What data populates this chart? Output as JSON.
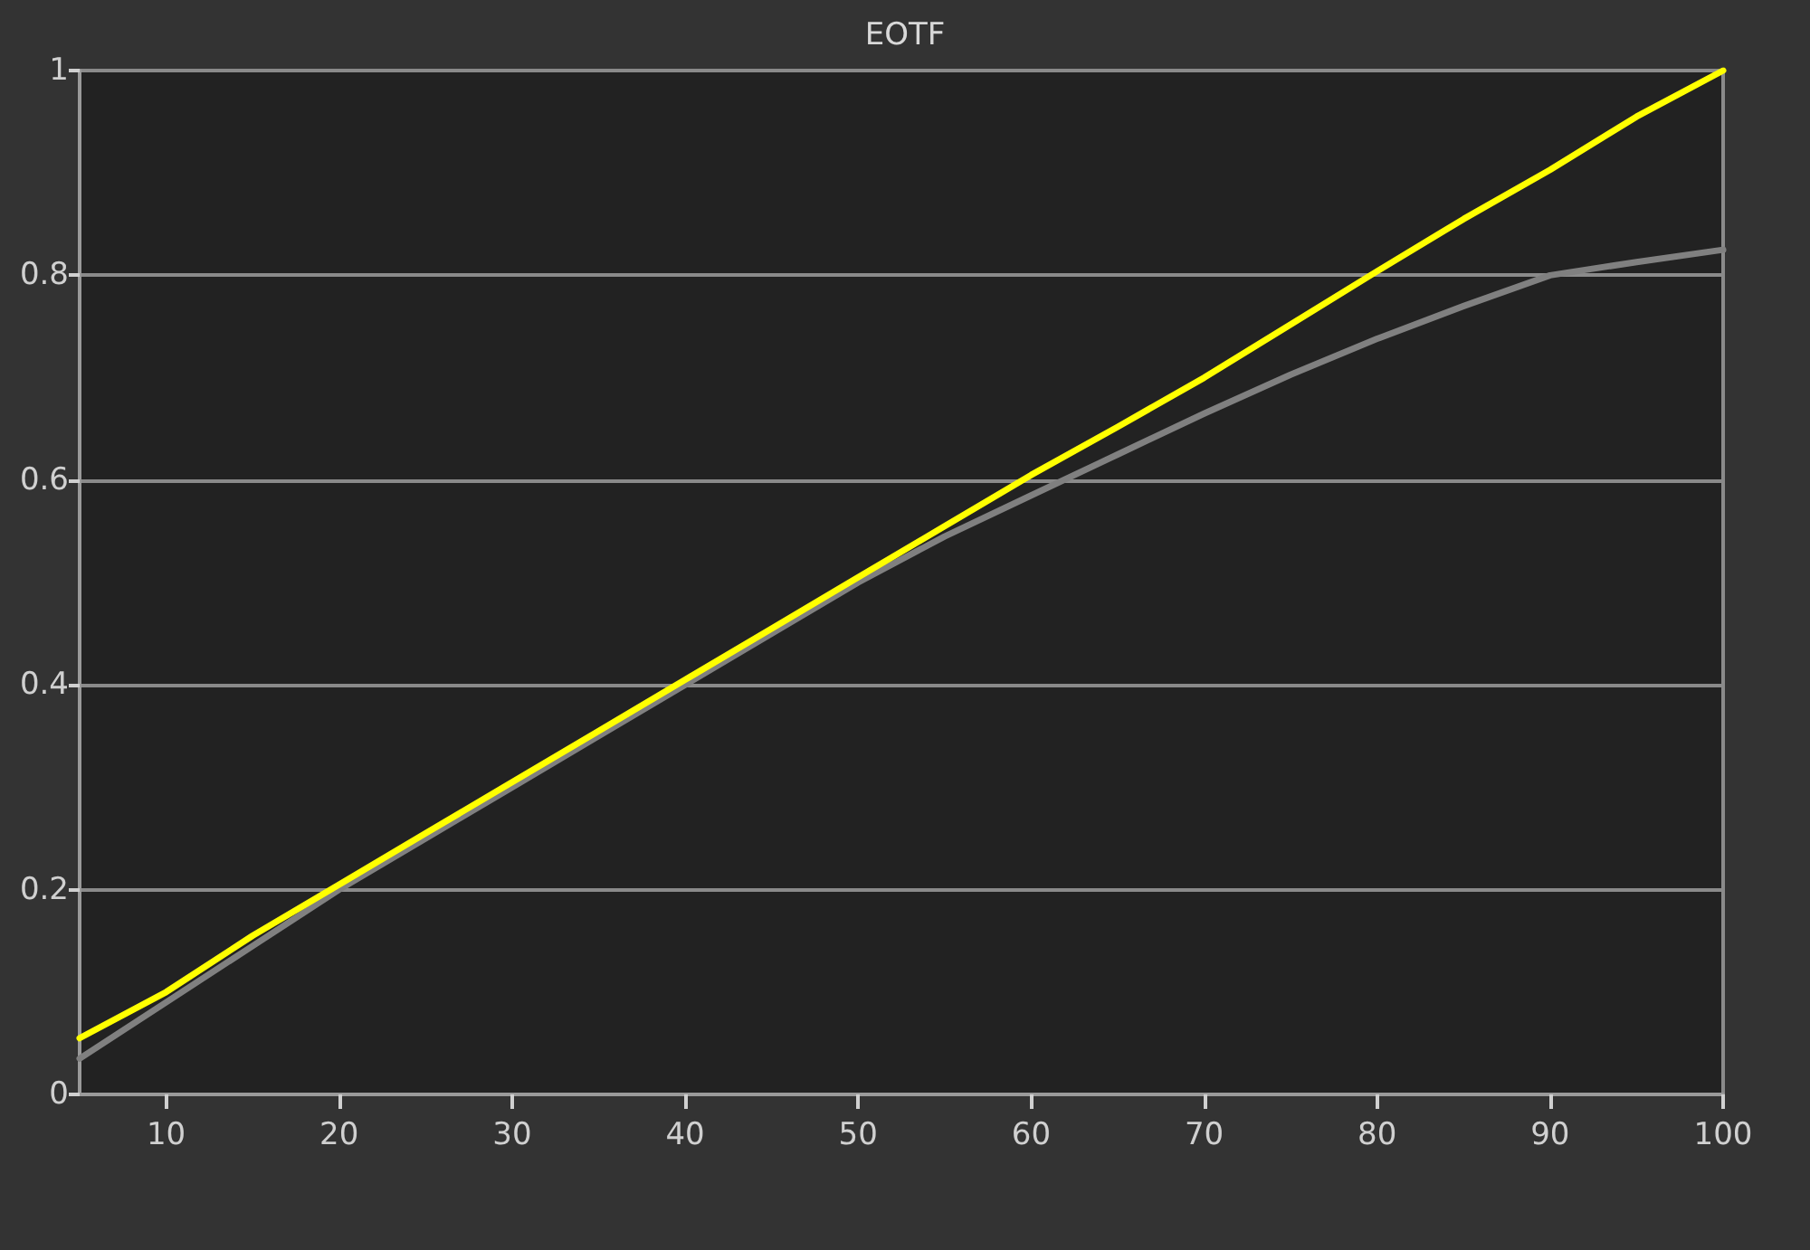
{
  "chart_data": {
    "type": "line",
    "title": "EOTF",
    "series": [
      {
        "color": "#808080",
        "x": [
          5,
          10,
          15,
          20,
          25,
          30,
          35,
          40,
          45,
          50,
          55,
          60,
          65,
          70,
          75,
          80,
          85,
          90,
          95,
          100
        ],
        "values": [
          0.035,
          0.09,
          0.145,
          0.2,
          0.25,
          0.3,
          0.35,
          0.4,
          0.45,
          0.5,
          0.545,
          0.585,
          0.625,
          0.665,
          0.703,
          0.738,
          0.77,
          0.8,
          0.813,
          0.825
        ]
      },
      {
        "color": "#ffff00",
        "x": [
          5,
          10,
          15,
          20,
          25,
          30,
          35,
          40,
          45,
          50,
          55,
          60,
          65,
          70,
          75,
          80,
          85,
          90,
          95,
          100
        ],
        "values": [
          0.055,
          0.1,
          0.155,
          0.205,
          0.255,
          0.305,
          0.355,
          0.405,
          0.455,
          0.505,
          0.555,
          0.605,
          0.652,
          0.7,
          0.752,
          0.804,
          0.855,
          0.903,
          0.955,
          1.0
        ]
      }
    ],
    "xlim": [
      5,
      100
    ],
    "xticks": [
      10,
      20,
      30,
      40,
      50,
      60,
      70,
      80,
      90,
      100
    ],
    "ylim": [
      0,
      1
    ],
    "yticks": [
      0,
      0.2,
      0.4,
      0.6,
      0.8,
      1
    ],
    "grid": "y",
    "marker": "none",
    "line_style": "solid"
  }
}
